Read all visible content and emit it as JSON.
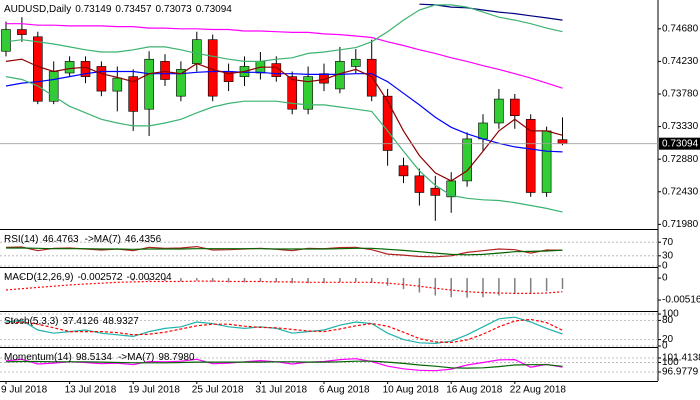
{
  "chart_data": [
    {
      "type": "candlestick",
      "title": "AUDUSD,Daily",
      "categories": [
        "9 Jul 2018",
        null,
        null,
        null,
        "13 Jul 2018",
        null,
        null,
        null,
        "19 Jul 2018",
        null,
        null,
        null,
        "25 Jul 2018",
        null,
        null,
        null,
        "31 Jul 2018",
        null,
        null,
        null,
        "6 Aug 2018",
        null,
        null,
        null,
        "10 Aug 2018",
        null,
        null,
        null,
        "16 Aug 2018",
        null,
        null,
        null,
        "22 Aug 2018",
        null,
        null,
        null
      ],
      "open": [
        0.7437,
        0.7467,
        0.7457,
        0.7368,
        0.7407,
        0.7423,
        0.7416,
        0.7382,
        0.7402,
        0.7357,
        0.7423,
        0.7375,
        0.742,
        0.7453,
        0.7409,
        0.7402,
        0.7407,
        0.742,
        0.7402,
        0.7357,
        0.7406,
        0.7385,
        0.7416,
        0.7426,
        0.7375,
        0.7279,
        0.7265,
        0.7248,
        0.7236,
        0.7258,
        0.7316,
        0.7338,
        0.7371,
        0.7343,
        0.7242,
        0.73149
      ],
      "high": [
        0.7478,
        0.7484,
        0.7464,
        0.7423,
        0.743,
        0.743,
        0.7423,
        0.7416,
        0.7412,
        0.7437,
        0.7433,
        0.7423,
        0.7464,
        0.746,
        0.742,
        0.743,
        0.7436,
        0.743,
        0.7409,
        0.7416,
        0.742,
        0.7443,
        0.744,
        0.7453,
        0.7385,
        0.729,
        0.7275,
        0.7265,
        0.727,
        0.7325,
        0.735,
        0.7385,
        0.7378,
        0.735,
        0.7333,
        0.73457
      ],
      "low": [
        0.743,
        0.745,
        0.7364,
        0.7364,
        0.7402,
        0.7393,
        0.7375,
        0.7354,
        0.7327,
        0.732,
        0.7389,
        0.7368,
        0.7409,
        0.7368,
        0.7382,
        0.7389,
        0.7398,
        0.7395,
        0.735,
        0.735,
        0.7382,
        0.7379,
        0.7406,
        0.7368,
        0.7279,
        0.7255,
        0.7224,
        0.7203,
        0.7214,
        0.725,
        0.73,
        0.733,
        0.733,
        0.7236,
        0.7236,
        0.73073
      ],
      "close": [
        0.7467,
        0.746,
        0.7368,
        0.7409,
        0.7423,
        0.7402,
        0.7382,
        0.74,
        0.7354,
        0.7426,
        0.7398,
        0.7412,
        0.7453,
        0.7375,
        0.7395,
        0.7416,
        0.7423,
        0.7402,
        0.7357,
        0.7402,
        0.7393,
        0.7423,
        0.7426,
        0.7375,
        0.73,
        0.7265,
        0.7242,
        0.7238,
        0.7258,
        0.7316,
        0.7338,
        0.7371,
        0.7348,
        0.7242,
        0.7327,
        0.73094
      ],
      "up_color": "#32cd32",
      "down_color": "#ff0000",
      "series": [
        {
          "color": "#ff00ff",
          "values": [
            0.7475,
            0.7475,
            0.7473,
            0.7473,
            0.7472,
            0.7472,
            0.7472,
            0.7471,
            0.7471,
            0.7469,
            0.7469,
            0.7468,
            0.7468,
            0.7467,
            0.7467,
            0.7465,
            0.7465,
            0.7464,
            0.7463,
            0.7463,
            0.7461,
            0.746,
            0.7458,
            0.7456,
            0.745,
            0.7445,
            0.7439,
            0.7434,
            0.7428,
            0.7423,
            0.7417,
            0.7412,
            0.7406,
            0.74,
            0.7393,
            0.7386
          ]
        },
        {
          "color": "#000080",
          "values": [
            null,
            null,
            null,
            null,
            null,
            null,
            null,
            null,
            null,
            null,
            null,
            null,
            null,
            null,
            null,
            null,
            null,
            null,
            null,
            null,
            null,
            null,
            null,
            null,
            null,
            null,
            0.7502,
            0.7501,
            0.7498,
            0.7497,
            0.7494,
            0.7491,
            0.7489,
            0.7486,
            0.7483,
            0.748
          ]
        },
        {
          "color": "#0000ff",
          "values": [
            0.7389,
            0.7393,
            0.7395,
            0.7398,
            0.7402,
            0.7406,
            0.7409,
            0.7409,
            0.7409,
            0.7406,
            0.7406,
            0.7406,
            0.7408,
            0.7409,
            0.7409,
            0.7408,
            0.7408,
            0.7406,
            0.7406,
            0.7405,
            0.7405,
            0.7405,
            0.7406,
            0.7406,
            0.7395,
            0.7379,
            0.7363,
            0.7346,
            0.7332,
            0.7323,
            0.7316,
            0.731,
            0.7305,
            0.7302,
            0.7299,
            0.7298
          ]
        },
        {
          "color": "#8b0000",
          "values": [
            0.7423,
            0.7426,
            0.7416,
            0.7409,
            0.7413,
            0.7415,
            0.7406,
            0.7401,
            0.7395,
            0.7406,
            0.7409,
            0.7406,
            0.742,
            0.7412,
            0.7406,
            0.7409,
            0.7415,
            0.7415,
            0.7398,
            0.7395,
            0.7398,
            0.7406,
            0.7412,
            0.7402,
            0.7368,
            0.7327,
            0.7293,
            0.7269,
            0.7258,
            0.7272,
            0.7299,
            0.7327,
            0.7343,
            0.7327,
            0.7327,
            0.7321
          ]
        },
        {
          "color": "#3cb371",
          "values": [
            0.745,
            0.7453,
            0.745,
            0.7447,
            0.7443,
            0.7439,
            0.7436,
            0.7436,
            0.7439,
            0.7443,
            0.7443,
            0.7439,
            0.7434,
            0.743,
            0.7426,
            0.7423,
            0.7423,
            0.7426,
            0.7428,
            0.7434,
            0.7436,
            0.7439,
            0.7442,
            0.745,
            0.7464,
            0.748,
            0.7494,
            0.7501,
            0.7501,
            0.7498,
            0.7491,
            0.7484,
            0.748,
            0.7475,
            0.7469,
            0.7464
          ]
        },
        {
          "color": "#3cb371",
          "values": [
            0.7402,
            0.7398,
            0.7389,
            0.7375,
            0.7361,
            0.7352,
            0.7343,
            0.7338,
            0.7334,
            0.7334,
            0.7338,
            0.7343,
            0.7352,
            0.736,
            0.7365,
            0.7368,
            0.7368,
            0.7368,
            0.7365,
            0.7363,
            0.7363,
            0.736,
            0.7357,
            0.7354,
            0.7327,
            0.7299,
            0.7272,
            0.7252,
            0.7238,
            0.7234,
            0.7232,
            0.7231,
            0.7228,
            0.7224,
            0.722,
            0.7215
          ]
        }
      ],
      "ylim": [
        0.7193,
        0.7505
      ],
      "yticks": [
        {
          "value": 0.7468,
          "label": "0.74680"
        },
        {
          "value": 0.7423,
          "label": "0.74230"
        },
        {
          "value": 0.7378,
          "label": "0.73780"
        },
        {
          "value": 0.7333,
          "label": "0.73330"
        },
        {
          "value": 0.7288,
          "label": "0.72880"
        },
        {
          "value": 0.7243,
          "label": "0.72430"
        },
        {
          "value": 0.7198,
          "label": "0.71980"
        }
      ],
      "grid": false
    },
    {
      "type": "line",
      "series": [
        {
          "name": "RSI(14)",
          "color": "#b22222",
          "values": [
            55,
            56,
            45,
            52,
            53,
            50,
            47,
            50,
            45,
            55,
            52,
            53,
            57,
            47,
            48,
            50,
            52,
            49,
            45,
            52,
            51,
            54,
            55,
            48,
            35,
            32,
            28,
            27,
            30,
            40,
            45,
            50,
            48,
            38,
            47,
            46.4763
          ]
        },
        {
          "name": "->MA(7)",
          "color": "#006400",
          "values": [
            53,
            53,
            52,
            51,
            51,
            51,
            50,
            50,
            49,
            50,
            50,
            50,
            51,
            51,
            51,
            51,
            51,
            50,
            50,
            50,
            50,
            51,
            52,
            52,
            49,
            46,
            42,
            38,
            34,
            33,
            34,
            38,
            42,
            43,
            44,
            46.4356
          ]
        }
      ],
      "ylim": [
        0,
        100
      ],
      "yticks": [
        70,
        30,
        0
      ],
      "grid": true
    },
    {
      "type": "macd",
      "series": [
        {
          "name": "MACD(12,26,9)",
          "color": "#808080",
          "kind": "histogram",
          "values": [
            0.0004,
            0.0005,
            0.0002,
            0.0001,
            0.0,
            -0.0001,
            -0.0003,
            -0.0004,
            -0.0006,
            -0.0006,
            -0.0007,
            -0.0008,
            -0.0006,
            -0.0009,
            -0.001,
            -0.001,
            -0.0009,
            -0.001,
            -0.0012,
            -0.0012,
            -0.0012,
            -0.001,
            -0.0009,
            -0.0011,
            -0.0018,
            -0.0026,
            -0.0034,
            -0.0041,
            -0.0045,
            -0.0046,
            -0.0045,
            -0.0041,
            -0.0037,
            -0.0037,
            -0.0031,
            -0.002572
          ]
        },
        {
          "color": "#ff0000",
          "dash": "2,2",
          "values": [
            -0.0028,
            -0.0025,
            -0.0022,
            -0.0019,
            -0.0016,
            -0.0014,
            -0.0012,
            -0.001,
            -0.0009,
            -0.0008,
            -0.0008,
            -0.0008,
            -0.0007,
            -0.0007,
            -0.0008,
            -0.0008,
            -0.0008,
            -0.0009,
            -0.0009,
            -0.001,
            -0.001,
            -0.001,
            -0.001,
            -0.001,
            -0.0012,
            -0.0015,
            -0.0019,
            -0.0024,
            -0.0028,
            -0.0032,
            -0.0034,
            -0.0035,
            -0.0036,
            -0.0036,
            -0.0035,
            -0.003204
          ]
        }
      ],
      "ylim": [
        -0.0075,
        0.0019
      ],
      "yticks": [
        0,
        -0.005161
      ],
      "grid": false
    },
    {
      "type": "line",
      "series": [
        {
          "name": "Stoch(5,3,3)",
          "color": "#20b2aa",
          "values": [
            75,
            80,
            50,
            40,
            45,
            50,
            40,
            35,
            30,
            45,
            55,
            60,
            75,
            70,
            60,
            55,
            60,
            55,
            40,
            45,
            50,
            65,
            75,
            70,
            40,
            20,
            10,
            8,
            15,
            35,
            60,
            85,
            90,
            75,
            55,
            37.4126
          ]
        },
        {
          "color": "#ff0000",
          "dash": "3,2",
          "values": [
            70,
            75,
            68,
            57,
            45,
            45,
            45,
            42,
            35,
            37,
            43,
            53,
            63,
            68,
            68,
            62,
            58,
            57,
            52,
            47,
            45,
            53,
            63,
            70,
            62,
            43,
            23,
            13,
            11,
            19,
            37,
            60,
            78,
            83,
            73,
            48.9327
          ]
        }
      ],
      "ylim": [
        0,
        100
      ],
      "yticks": [
        100,
        80,
        20,
        0
      ],
      "grid": true
    },
    {
      "type": "line",
      "series": [
        {
          "name": "Momentum(14)",
          "color": "#ff00ff",
          "values": [
            100.5,
            101,
            99.5,
            99.8,
            100.2,
            100,
            99.6,
            99.8,
            99.3,
            100.3,
            100.2,
            100.4,
            101,
            99.6,
            99.8,
            100.2,
            100.6,
            100.2,
            99.5,
            100.1,
            100.3,
            100.9,
            101.2,
            100.3,
            98.8,
            98,
            97.5,
            97.4,
            97.9,
            99.2,
            100,
            100.8,
            100.9,
            98.5,
            99.4,
            98.5134
          ]
        },
        {
          "name": "->MA(7)",
          "color": "#006400",
          "last_label": "98.7980",
          "values": [
            100.2,
            100.3,
            100.3,
            100.2,
            100.2,
            100.2,
            100.1,
            100,
            99.9,
            99.9,
            99.9,
            100,
            100.1,
            100.1,
            100.1,
            100.1,
            100.1,
            100.2,
            100.2,
            100.1,
            100.1,
            100.2,
            100.4,
            100.4,
            100.1,
            99.7,
            99.2,
            98.8,
            98.3,
            98.2,
            98.3,
            98.7,
            99.2,
            99.3,
            99.3,
            98.798
          ]
        }
      ],
      "ylim": [
        94.44,
        103.95
      ],
      "yticks": [
        101.4138,
        100,
        96.9779
      ],
      "grid": true
    }
  ]
}
